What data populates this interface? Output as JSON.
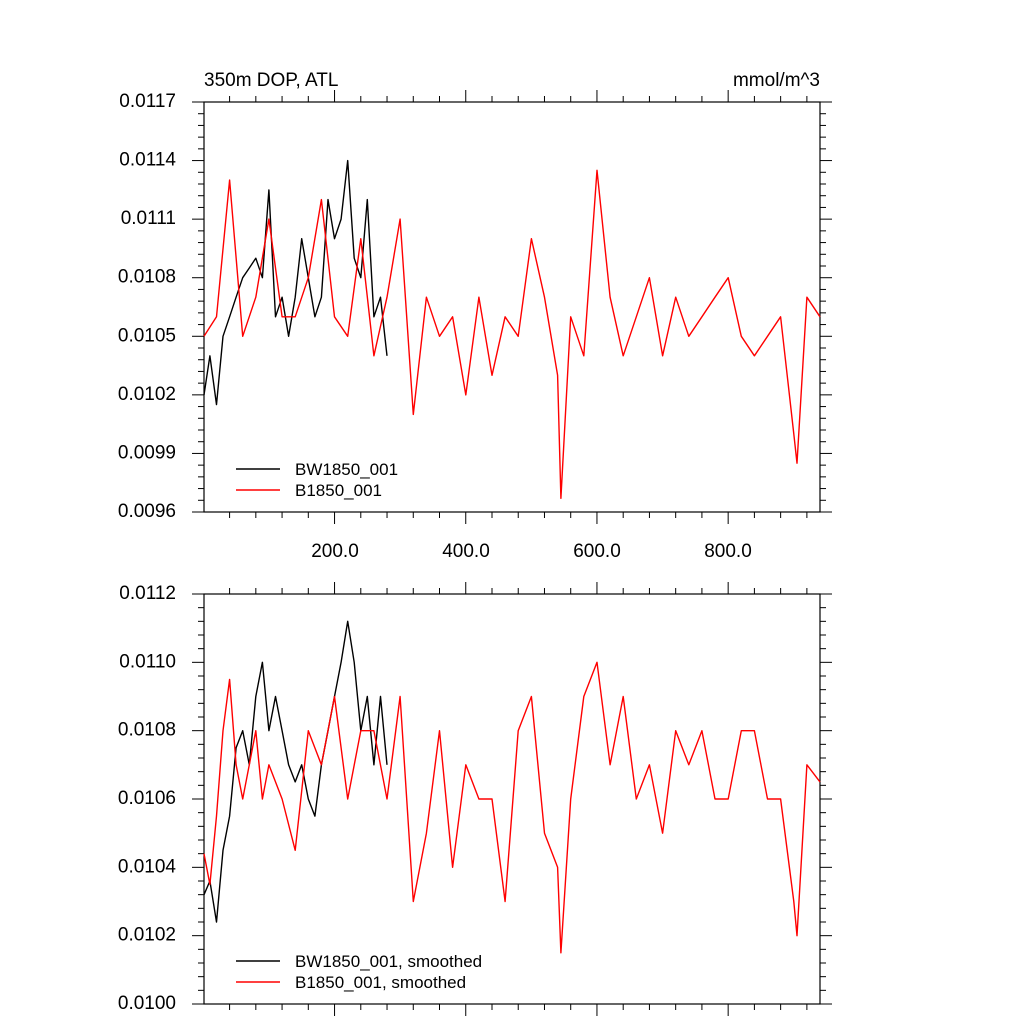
{
  "charts": [
    {
      "title_left": "350m DOP, ATL",
      "title_right": "mmol/m^3",
      "yticks": [
        "0.0096",
        "0.0099",
        "0.0102",
        "0.0105",
        "0.0108",
        "0.0111",
        "0.0114",
        "0.0117"
      ],
      "xticks": [
        "200.0",
        "400.0",
        "600.0",
        "800.0"
      ],
      "legend": [
        "BW1850_001",
        "B1850_001"
      ]
    },
    {
      "yticks": [
        "0.0100",
        "0.0102",
        "0.0104",
        "0.0106",
        "0.0108",
        "0.0110",
        "0.0112"
      ],
      "xticks": [],
      "legend": [
        "BW1850_001, smoothed",
        "B1850_001, smoothed"
      ]
    }
  ],
  "chart_data": [
    {
      "type": "line",
      "title": "350m DOP, ATL",
      "units": "mmol/m^3",
      "xlim": [
        1,
        940
      ],
      "ylim": [
        0.0096,
        0.0117
      ],
      "xticks": [
        200,
        400,
        600,
        800
      ],
      "yticks": [
        0.0096,
        0.0099,
        0.0102,
        0.0105,
        0.0108,
        0.0111,
        0.0114,
        0.0117
      ],
      "legend_position": "bottom-left",
      "series": [
        {
          "name": "BW1850_001",
          "color": "#000000",
          "x": [
            1,
            10,
            20,
            30,
            40,
            50,
            60,
            70,
            80,
            90,
            100,
            110,
            120,
            130,
            140,
            150,
            160,
            170,
            180,
            190,
            200,
            210,
            220,
            230,
            240,
            250,
            260,
            270,
            280
          ],
          "y": [
            0.0102,
            0.0104,
            0.01015,
            0.0105,
            0.0106,
            0.0107,
            0.0108,
            0.01085,
            0.0109,
            0.0108,
            0.01125,
            0.0106,
            0.0107,
            0.0105,
            0.0107,
            0.011,
            0.0108,
            0.0106,
            0.0107,
            0.0112,
            0.011,
            0.0111,
            0.0114,
            0.0109,
            0.0108,
            0.0112,
            0.0106,
            0.0107,
            0.0104
          ]
        },
        {
          "name": "B1850_001",
          "color": "#ff0000",
          "x": [
            1,
            20,
            40,
            60,
            80,
            100,
            120,
            140,
            160,
            180,
            200,
            220,
            240,
            260,
            280,
            300,
            320,
            340,
            360,
            380,
            400,
            420,
            440,
            460,
            480,
            500,
            520,
            540,
            545,
            560,
            580,
            600,
            620,
            640,
            660,
            680,
            700,
            720,
            740,
            760,
            780,
            800,
            820,
            840,
            860,
            880,
            900,
            905,
            920,
            940
          ],
          "y": [
            0.0105,
            0.0106,
            0.0113,
            0.0105,
            0.0107,
            0.0111,
            0.0106,
            0.0106,
            0.0108,
            0.0112,
            0.0106,
            0.0105,
            0.011,
            0.0104,
            0.0107,
            0.0111,
            0.0101,
            0.0107,
            0.0105,
            0.0106,
            0.0102,
            0.0107,
            0.0103,
            0.0106,
            0.0105,
            0.011,
            0.0107,
            0.0103,
            0.00967,
            0.0106,
            0.0104,
            0.01135,
            0.0107,
            0.0104,
            0.0106,
            0.0108,
            0.0104,
            0.0107,
            0.0105,
            0.0106,
            0.0107,
            0.0108,
            0.0105,
            0.0104,
            0.0105,
            0.0106,
            0.01,
            0.00985,
            0.0107,
            0.0106
          ]
        }
      ]
    },
    {
      "type": "line",
      "xlim": [
        1,
        940
      ],
      "ylim": [
        0.01,
        0.0112
      ],
      "yticks": [
        0.01,
        0.0102,
        0.0104,
        0.0106,
        0.0108,
        0.011,
        0.0112
      ],
      "legend_position": "bottom-left",
      "series": [
        {
          "name": "BW1850_001, smoothed",
          "color": "#000000",
          "x": [
            1,
            10,
            20,
            30,
            40,
            50,
            60,
            70,
            80,
            90,
            100,
            110,
            120,
            130,
            140,
            150,
            160,
            170,
            180,
            190,
            200,
            210,
            220,
            230,
            240,
            250,
            260,
            270,
            280
          ],
          "y": [
            0.01032,
            0.01036,
            0.01024,
            0.01045,
            0.01055,
            0.01075,
            0.0108,
            0.0107,
            0.0109,
            0.011,
            0.0108,
            0.0109,
            0.0108,
            0.0107,
            0.01065,
            0.0107,
            0.0106,
            0.01055,
            0.0107,
            0.0108,
            0.0109,
            0.011,
            0.01112,
            0.011,
            0.0108,
            0.0109,
            0.0107,
            0.0109,
            0.0107
          ]
        },
        {
          "name": "B1850_001, smoothed",
          "color": "#ff0000",
          "x": [
            1,
            10,
            20,
            30,
            40,
            50,
            60,
            70,
            80,
            90,
            100,
            120,
            140,
            160,
            180,
            200,
            220,
            240,
            260,
            280,
            300,
            320,
            340,
            360,
            380,
            400,
            420,
            440,
            460,
            480,
            500,
            520,
            540,
            545,
            560,
            580,
            600,
            620,
            640,
            660,
            680,
            700,
            720,
            740,
            760,
            780,
            800,
            820,
            840,
            860,
            880,
            900,
            905,
            920,
            940
          ],
          "y": [
            0.01044,
            0.01035,
            0.01055,
            0.0108,
            0.01095,
            0.0107,
            0.0106,
            0.0107,
            0.0108,
            0.0106,
            0.0107,
            0.0106,
            0.01045,
            0.0108,
            0.0107,
            0.0109,
            0.0106,
            0.0108,
            0.0108,
            0.0106,
            0.0109,
            0.0103,
            0.0105,
            0.0108,
            0.0104,
            0.0107,
            0.0106,
            0.0106,
            0.0103,
            0.0108,
            0.0109,
            0.0105,
            0.0104,
            0.01015,
            0.0106,
            0.0109,
            0.011,
            0.0107,
            0.0109,
            0.0106,
            0.0107,
            0.0105,
            0.0108,
            0.0107,
            0.0108,
            0.0106,
            0.0106,
            0.0108,
            0.0108,
            0.0106,
            0.0106,
            0.0103,
            0.0102,
            0.0107,
            0.01065
          ]
        }
      ]
    }
  ]
}
